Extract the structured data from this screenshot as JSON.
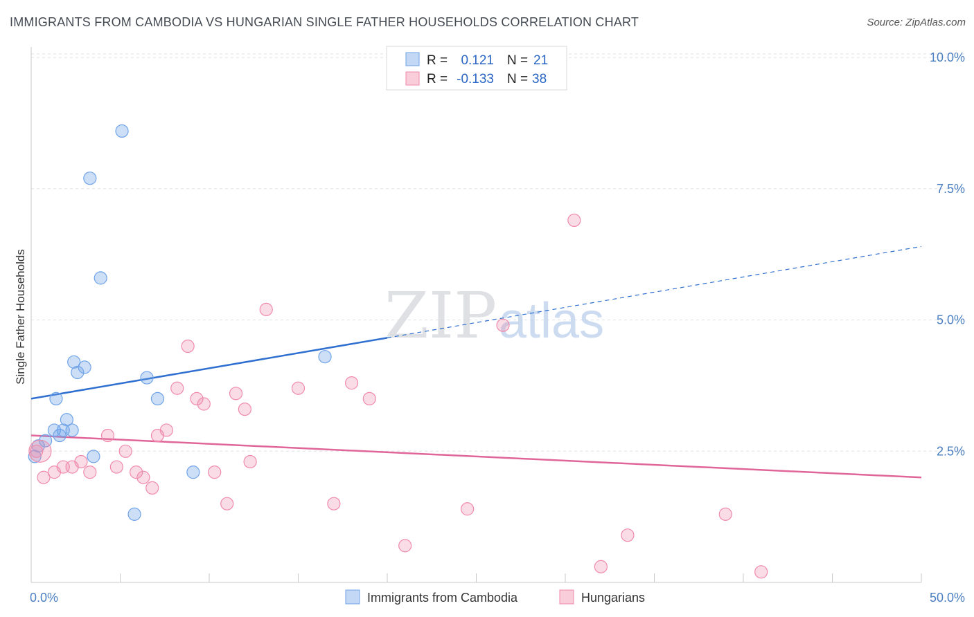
{
  "title": "IMMIGRANTS FROM CAMBODIA VS HUNGARIAN SINGLE FATHER HOUSEHOLDS CORRELATION CHART",
  "source": "Source: ZipAtlas.com",
  "watermark": {
    "zip": "ZIP",
    "atlas": "atlas"
  },
  "legend": {
    "rows": [
      {
        "r_label": "R =",
        "r_value": "0.121",
        "n_label": "N =",
        "n_value": "21",
        "color": "#6fa3e8"
      },
      {
        "r_label": "R =",
        "r_value": "-0.133",
        "n_label": "N =",
        "n_value": "38",
        "color": "#f08aab"
      }
    ]
  },
  "bottom_legend": [
    {
      "label": "Immigrants from Cambodia",
      "color": "#6fa3e8"
    },
    {
      "label": "Hungarians",
      "color": "#f08aab"
    }
  ],
  "chart_data": {
    "type": "scatter",
    "title": "IMMIGRANTS FROM CAMBODIA VS HUNGARIAN SINGLE FATHER HOUSEHOLDS CORRELATION CHART",
    "xlabel": "",
    "ylabel": "Single Father Households",
    "xlim": [
      0,
      50
    ],
    "ylim": [
      0,
      10.2
    ],
    "x_tick_labels": [
      "0.0%",
      "50.0%"
    ],
    "y_ticks": [
      2.5,
      5.0,
      7.5,
      10.0
    ],
    "y_tick_labels": [
      "2.5%",
      "5.0%",
      "7.5%",
      "10.0%"
    ],
    "grid": true,
    "series": [
      {
        "name": "Immigrants from Cambodia",
        "color": "#6fa3e8",
        "points": [
          [
            0.2,
            2.4
          ],
          [
            0.4,
            2.6
          ],
          [
            0.8,
            2.7
          ],
          [
            1.3,
            2.9
          ],
          [
            1.4,
            3.5
          ],
          [
            1.6,
            2.8
          ],
          [
            1.8,
            2.9
          ],
          [
            2.0,
            3.1
          ],
          [
            2.3,
            2.9
          ],
          [
            2.4,
            4.2
          ],
          [
            2.6,
            4.0
          ],
          [
            3.0,
            4.1
          ],
          [
            3.3,
            7.7
          ],
          [
            3.5,
            2.4
          ],
          [
            3.9,
            5.8
          ],
          [
            5.1,
            8.6
          ],
          [
            5.8,
            1.3
          ],
          [
            6.5,
            3.9
          ],
          [
            7.1,
            3.5
          ],
          [
            9.1,
            2.1
          ],
          [
            16.5,
            4.3
          ]
        ],
        "trend": {
          "x0": 0,
          "y0": 3.5,
          "x1": 50,
          "y1": 6.4,
          "solid_until_x": 20
        }
      },
      {
        "name": "Hungarians",
        "color": "#f08aab",
        "points": [
          [
            0.3,
            2.5
          ],
          [
            0.7,
            2.0
          ],
          [
            1.3,
            2.1
          ],
          [
            1.8,
            2.2
          ],
          [
            2.3,
            2.2
          ],
          [
            2.8,
            2.3
          ],
          [
            3.3,
            2.1
          ],
          [
            4.3,
            2.8
          ],
          [
            4.8,
            2.2
          ],
          [
            5.3,
            2.5
          ],
          [
            5.9,
            2.1
          ],
          [
            6.3,
            2.0
          ],
          [
            6.8,
            1.8
          ],
          [
            7.1,
            2.8
          ],
          [
            7.6,
            2.9
          ],
          [
            8.2,
            3.7
          ],
          [
            8.8,
            4.5
          ],
          [
            9.3,
            3.5
          ],
          [
            9.7,
            3.4
          ],
          [
            10.3,
            2.1
          ],
          [
            11.0,
            1.5
          ],
          [
            11.5,
            3.6
          ],
          [
            12.0,
            3.3
          ],
          [
            12.3,
            2.3
          ],
          [
            13.2,
            5.2
          ],
          [
            15.0,
            3.7
          ],
          [
            17.0,
            1.5
          ],
          [
            18.0,
            3.8
          ],
          [
            19.0,
            3.5
          ],
          [
            21.0,
            0.7
          ],
          [
            24.5,
            1.4
          ],
          [
            26.5,
            4.9
          ],
          [
            30.5,
            6.9
          ],
          [
            32.0,
            0.3
          ],
          [
            33.5,
            0.9
          ],
          [
            39.0,
            1.3
          ],
          [
            41.0,
            0.2
          ],
          [
            0.5,
            2.5
          ]
        ],
        "trend": {
          "x0": 0,
          "y0": 2.8,
          "x1": 50,
          "y1": 2.0,
          "solid_until_x": 50
        }
      }
    ]
  }
}
